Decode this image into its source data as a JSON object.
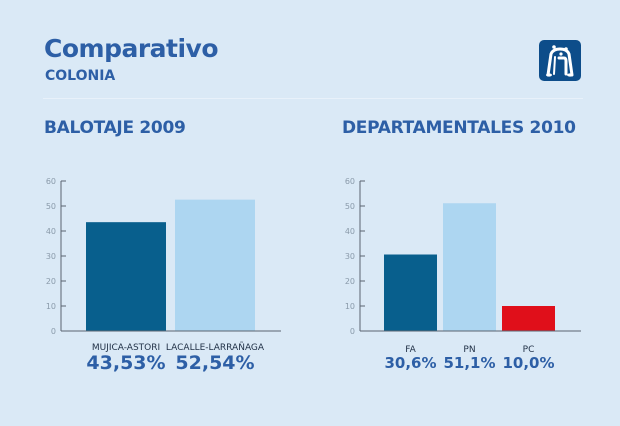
{
  "header": {
    "title": "Comparativo",
    "subtitle": "COLONIA",
    "logo_icon": "intendencia-arch-logo-icon"
  },
  "colors": {
    "background": "#dae9f6",
    "title": "#2d5fa6",
    "dark_blue": "#085f8d",
    "light_blue": "#add6f1",
    "red": "#e00f1a",
    "axis": "#5a6470"
  },
  "chart_data": [
    {
      "type": "bar",
      "title": "BALOTAJE 2009",
      "categories": [
        "MUJICA-ASTORI",
        "LACALLE-LARRAÑAGA"
      ],
      "values": [
        43.53,
        52.54
      ],
      "value_labels": [
        "43,53%",
        "52,54%"
      ],
      "bar_colors": [
        "#085f8d",
        "#add6f1"
      ],
      "xlabel": "",
      "ylabel": "",
      "ylim": [
        0,
        60
      ],
      "yticks": [
        0,
        10,
        20,
        30,
        40,
        50,
        60
      ],
      "grid": false,
      "legend": "none"
    },
    {
      "type": "bar",
      "title": "DEPARTAMENTALES 2010",
      "categories": [
        "FA",
        "PN",
        "PC"
      ],
      "values": [
        30.6,
        51.1,
        10.0
      ],
      "value_labels": [
        "30,6%",
        "51,1%",
        "10,0%"
      ],
      "bar_colors": [
        "#085f8d",
        "#add6f1",
        "#e00f1a"
      ],
      "xlabel": "",
      "ylabel": "",
      "ylim": [
        0,
        60
      ],
      "yticks": [
        0,
        10,
        20,
        30,
        40,
        50,
        60
      ],
      "grid": false,
      "legend": "none"
    }
  ]
}
